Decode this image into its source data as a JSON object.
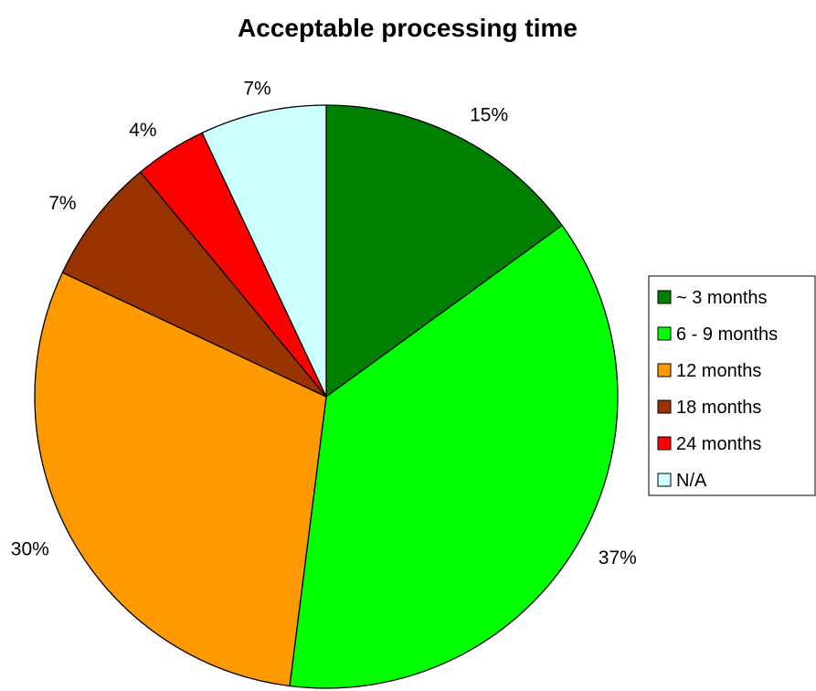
{
  "chart_data": {
    "type": "pie",
    "title": "Acceptable processing time",
    "categories": [
      "~ 3 months",
      "6 - 9 months",
      "12 months",
      "18 months",
      "24 months",
      "N/A"
    ],
    "values": [
      15,
      37,
      30,
      7,
      4,
      7
    ],
    "data_labels": [
      "15%",
      "37%",
      "30%",
      "7%",
      "4%",
      "7%"
    ],
    "colors": [
      "#008000",
      "#00ff00",
      "#ff9900",
      "#993300",
      "#ff0000",
      "#ccffff"
    ],
    "start_angle": "12 o'clock",
    "direction": "clockwise",
    "legend_position": "right"
  }
}
